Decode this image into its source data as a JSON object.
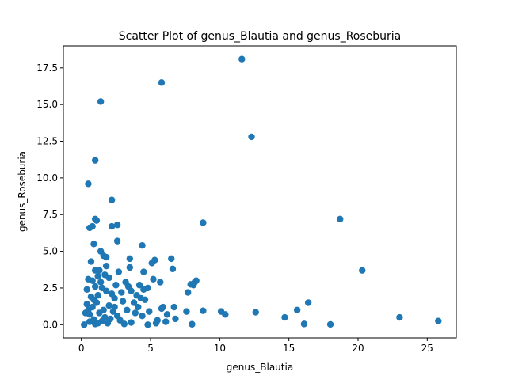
{
  "chart_data": {
    "type": "scatter",
    "title": "Scatter Plot of genus_Blautia and genus_Roseburia",
    "xlabel": "genus_Blautia",
    "ylabel": "genus_Roseburia",
    "xlim": [
      -1.3,
      27.1
    ],
    "ylim": [
      -0.9,
      19.0
    ],
    "xticks": [
      {
        "value": 0,
        "label": "0"
      },
      {
        "value": 5,
        "label": "5"
      },
      {
        "value": 10,
        "label": "10"
      },
      {
        "value": 15,
        "label": "15"
      },
      {
        "value": 20,
        "label": "20"
      },
      {
        "value": 25,
        "label": "25"
      }
    ],
    "yticks": [
      {
        "value": 0.0,
        "label": "0.0"
      },
      {
        "value": 2.5,
        "label": "2.5"
      },
      {
        "value": 5.0,
        "label": "5.0"
      },
      {
        "value": 7.5,
        "label": "7.5"
      },
      {
        "value": 10.0,
        "label": "10.0"
      },
      {
        "value": 12.5,
        "label": "12.5"
      },
      {
        "value": 15.0,
        "label": "15.0"
      },
      {
        "value": 17.5,
        "label": "17.5"
      }
    ],
    "grid": false,
    "marker_color": "#1f77b4",
    "series": [
      {
        "name": "genus_Blautia vs genus_Roseburia",
        "points": [
          [
            11.6,
            18.1
          ],
          [
            5.8,
            16.5
          ],
          [
            1.4,
            15.2
          ],
          [
            12.3,
            12.8
          ],
          [
            1.0,
            11.2
          ],
          [
            0.5,
            9.6
          ],
          [
            2.2,
            8.5
          ],
          [
            1.0,
            7.2
          ],
          [
            1.1,
            7.1
          ],
          [
            18.7,
            7.2
          ],
          [
            8.8,
            6.95
          ],
          [
            2.6,
            6.8
          ],
          [
            2.2,
            6.7
          ],
          [
            0.6,
            6.6
          ],
          [
            0.8,
            6.7
          ],
          [
            2.6,
            5.7
          ],
          [
            0.9,
            5.5
          ],
          [
            4.4,
            5.4
          ],
          [
            1.4,
            5.0
          ],
          [
            1.6,
            4.7
          ],
          [
            1.8,
            4.6
          ],
          [
            3.5,
            4.5
          ],
          [
            6.5,
            4.5
          ],
          [
            5.3,
            4.4
          ],
          [
            5.1,
            4.2
          ],
          [
            0.7,
            4.3
          ],
          [
            1.8,
            4.0
          ],
          [
            3.5,
            3.9
          ],
          [
            6.6,
            3.8
          ],
          [
            1.0,
            3.7
          ],
          [
            1.3,
            3.7
          ],
          [
            2.7,
            3.6
          ],
          [
            4.5,
            3.6
          ],
          [
            20.3,
            3.7
          ],
          [
            1.2,
            3.3
          ],
          [
            2.0,
            3.2
          ],
          [
            0.5,
            3.1
          ],
          [
            0.8,
            3.0
          ],
          [
            5.2,
            3.1
          ],
          [
            5.7,
            2.9
          ],
          [
            8.2,
            2.9
          ],
          [
            8.1,
            2.7
          ],
          [
            7.9,
            2.75
          ],
          [
            8.3,
            3.0
          ],
          [
            4.2,
            2.7
          ],
          [
            3.4,
            2.6
          ],
          [
            4.8,
            2.5
          ],
          [
            4.5,
            2.4
          ],
          [
            3.6,
            2.3
          ],
          [
            2.9,
            2.2
          ],
          [
            0.4,
            2.4
          ],
          [
            1.5,
            2.5
          ],
          [
            2.2,
            2.1
          ],
          [
            7.7,
            2.2
          ],
          [
            4.0,
            2.0
          ],
          [
            0.7,
            1.9
          ],
          [
            1.2,
            2.0
          ],
          [
            2.4,
            1.8
          ],
          [
            3.0,
            1.6
          ],
          [
            4.3,
            1.8
          ],
          [
            4.6,
            1.7
          ],
          [
            3.8,
            1.5
          ],
          [
            0.4,
            1.4
          ],
          [
            16.4,
            1.5
          ],
          [
            5.9,
            1.2
          ],
          [
            5.8,
            1.1
          ],
          [
            6.7,
            1.2
          ],
          [
            15.6,
            1.0
          ],
          [
            8.8,
            0.95
          ],
          [
            10.1,
            0.9
          ],
          [
            12.6,
            0.85
          ],
          [
            10.4,
            0.7
          ],
          [
            7.6,
            0.9
          ],
          [
            3.3,
            1.0
          ],
          [
            2.3,
            0.9
          ],
          [
            6.2,
            0.7
          ],
          [
            4.4,
            0.6
          ],
          [
            14.7,
            0.5
          ],
          [
            23.0,
            0.5
          ],
          [
            6.8,
            0.4
          ],
          [
            5.5,
            0.3
          ],
          [
            25.8,
            0.25
          ],
          [
            1.7,
            0.5
          ],
          [
            0.3,
            0.8
          ],
          [
            0.6,
            0.2
          ],
          [
            2.8,
            0.3
          ],
          [
            3.6,
            0.15
          ],
          [
            16.1,
            0.05
          ],
          [
            18.0,
            0.02
          ],
          [
            8.0,
            0.03
          ],
          [
            0.2,
            0.0
          ],
          [
            1.0,
            0.05
          ],
          [
            1.9,
            0.1
          ],
          [
            3.1,
            0.05
          ],
          [
            4.8,
            0.0
          ],
          [
            5.4,
            0.1
          ],
          [
            6.1,
            0.2
          ],
          [
            0.9,
            0.35
          ],
          [
            1.5,
            0.25
          ],
          [
            2.6,
            0.6
          ],
          [
            0.8,
            1.2
          ],
          [
            1.1,
            1.5
          ],
          [
            1.6,
            1.0
          ],
          [
            2.0,
            1.3
          ],
          [
            1.3,
            0.8
          ],
          [
            0.6,
            0.7
          ],
          [
            1.8,
            2.3
          ],
          [
            1.0,
            2.6
          ],
          [
            1.4,
            2.9
          ],
          [
            2.5,
            2.7
          ],
          [
            3.2,
            2.9
          ],
          [
            1.7,
            3.4
          ],
          [
            0.9,
            1.7
          ],
          [
            2.1,
            0.4
          ],
          [
            3.9,
            0.8
          ],
          [
            4.1,
            1.2
          ],
          [
            4.9,
            0.9
          ],
          [
            0.5,
            1.0
          ],
          [
            1.2,
            0.1
          ],
          [
            2.4,
            1.2
          ]
        ]
      }
    ]
  }
}
